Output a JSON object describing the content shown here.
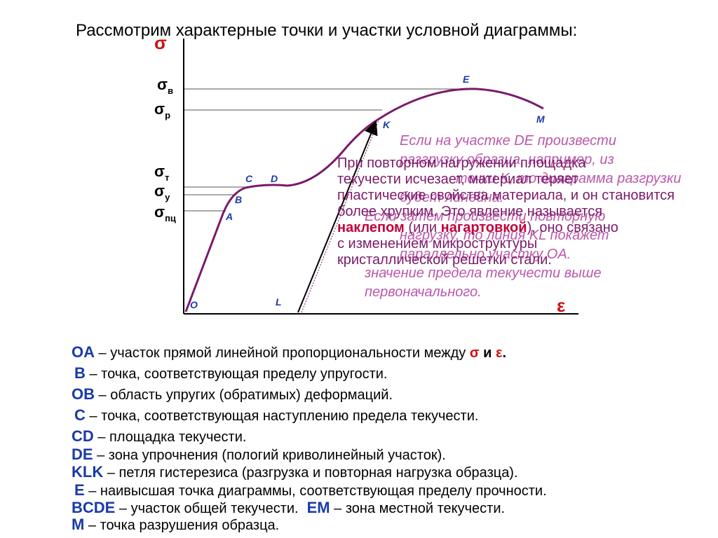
{
  "title": "Рассмотрим характерные точки и участки условной диаграммы:",
  "diagram": {
    "y_axis": "σ",
    "x_axis": "ε",
    "levels": [
      {
        "symbol": "σ",
        "sub": "в"
      },
      {
        "symbol": "σ",
        "sub": "р"
      },
      {
        "symbol": "σ",
        "sub": "т"
      },
      {
        "symbol": "σ",
        "sub": "у"
      },
      {
        "symbol": "σ",
        "sub": "пц"
      }
    ],
    "points": [
      "O",
      "A",
      "B",
      "C",
      "D",
      "K",
      "E",
      "M",
      "L"
    ]
  },
  "note_unloading": [
    "Если на участке DE произвести",
    "разгрузку образца, например, из",
    "точки K, то диаграмма разгрузки",
    "будет линейна.",
    "Если затем произвести повторную",
    "нагрузку, то линия KL покажет",
    "параллельно участку OA.",
    "значение предела текучести выше",
    "первоначального."
  ],
  "note_hardening": {
    "lines": [
      "При повторном нагружении площадка",
      "текучести исчезает, материал теряет",
      "пластические свойства материала, и он становится",
      "более хрупким. Это явление называется"
    ],
    "emph_line": {
      "bold1": "наклепом",
      "mid": " (или ",
      "bold2": "нагартовкой",
      "end": "), оно связано"
    },
    "tail": [
      "с изменением микроструктуры",
      "кристаллической решетки стали."
    ]
  },
  "legend": [
    {
      "key": "OA",
      "text": " – участок прямой линейной пропорциональности между ",
      "sym1": "σ",
      "conj": " и ",
      "sym2": "ε",
      "end": "."
    },
    {
      "key": "B",
      "text": " – точка, соответствующая пределу упругости."
    },
    {
      "key": "OB",
      "text": " – область упругих (обратимых) деформаций."
    },
    {
      "key": "C",
      "text": " – точка, соответствующая наступлению предела текучести."
    },
    {
      "key": "CD",
      "text": " – площадка текучести."
    },
    {
      "key": "DE",
      "text": " – зона упрочнения (пологий криволинейный участок)."
    },
    {
      "key": "KLK",
      "text": " – петля гистерезиса (разгрузка и повторная нагрузка образца)."
    },
    {
      "key": "E",
      "text": " – наивысшая точка диаграммы, соответствующая пределу прочности."
    },
    {
      "key": "BCDE",
      "text": " – участок общей текучести.",
      "key2": "EM",
      "text2": " – зона местной текучести."
    },
    {
      "key": "M",
      "text": " – точка разрушения образца."
    }
  ]
}
